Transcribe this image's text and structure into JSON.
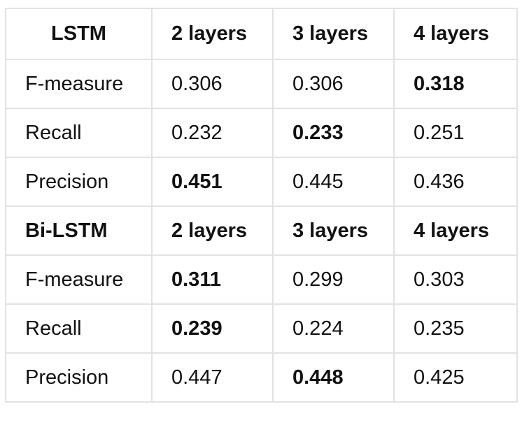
{
  "table": {
    "rows": [
      {
        "kind": "header",
        "cells": [
          "LSTM",
          "2 layers",
          "3 layers",
          "4 layers"
        ]
      },
      {
        "kind": "data",
        "cells": [
          "F-measure",
          "0.306",
          "0.306",
          "0.318"
        ],
        "bold": [
          false,
          false,
          false,
          true
        ]
      },
      {
        "kind": "data",
        "cells": [
          "Recall",
          "0.232",
          "0.233",
          "0.251"
        ],
        "bold": [
          false,
          false,
          true,
          false
        ]
      },
      {
        "kind": "data",
        "cells": [
          "Precision",
          "0.451",
          "0.445",
          "0.436"
        ],
        "bold": [
          false,
          true,
          false,
          false
        ]
      },
      {
        "kind": "header",
        "cells": [
          "Bi-LSTM",
          "2 layers",
          "3 layers",
          "4 layers"
        ]
      },
      {
        "kind": "data",
        "cells": [
          "F-measure",
          "0.311",
          "0.299",
          "0.303"
        ],
        "bold": [
          false,
          true,
          false,
          false
        ]
      },
      {
        "kind": "data",
        "cells": [
          "Recall",
          "0.239",
          "0.224",
          "0.235"
        ],
        "bold": [
          false,
          true,
          false,
          false
        ]
      },
      {
        "kind": "data",
        "cells": [
          "Precision",
          "0.447",
          "0.448",
          "0.425"
        ],
        "bold": [
          false,
          false,
          true,
          false
        ]
      }
    ]
  }
}
